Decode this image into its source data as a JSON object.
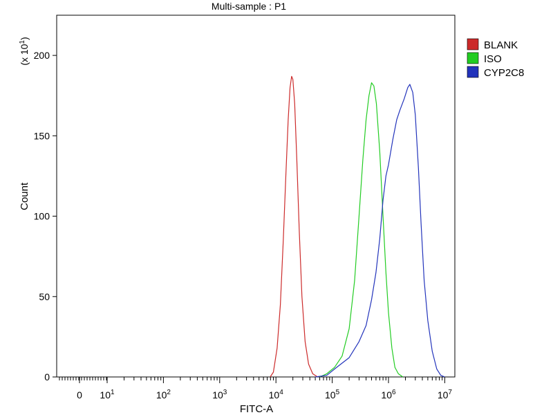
{
  "chart_data": {
    "type": "line",
    "title": "Multi-sample : P1",
    "xlabel": "FITC-A",
    "ylabel": "Count",
    "y_multiplier_label": "(x 10",
    "y_multiplier_exp": "1",
    "y_multiplier_close": ")",
    "x_scale": "log",
    "xlim": [
      -2,
      10000000
    ],
    "ylim": [
      0,
      22.5
    ],
    "y_ticks": [
      {
        "value": 0,
        "label": "0"
      },
      {
        "value": 5,
        "label": "50"
      },
      {
        "value": 10,
        "label": "100"
      },
      {
        "value": 15,
        "label": "150"
      },
      {
        "value": 20,
        "label": "200"
      }
    ],
    "x_ticks": [
      {
        "value": 0,
        "base": "0",
        "exp": ""
      },
      {
        "value": 10,
        "base": "10",
        "exp": "1"
      },
      {
        "value": 100,
        "base": "10",
        "exp": "2"
      },
      {
        "value": 1000,
        "base": "10",
        "exp": "3"
      },
      {
        "value": 10000,
        "base": "10",
        "exp": "4"
      },
      {
        "value": 100000,
        "base": "10",
        "exp": "5"
      },
      {
        "value": 1000000,
        "base": "10",
        "exp": "6"
      },
      {
        "value": 10000000,
        "base": "10",
        "exp": "7"
      }
    ],
    "grid": false,
    "legend_position": "right",
    "series": [
      {
        "name": "BLANK",
        "color": "#cc2a2a",
        "points": [
          [
            7900,
            0
          ],
          [
            9000,
            0.3
          ],
          [
            10500,
            1.8
          ],
          [
            12000,
            4.5
          ],
          [
            13500,
            8.5
          ],
          [
            15000,
            12.5
          ],
          [
            16500,
            16.0
          ],
          [
            17800,
            18.0
          ],
          [
            19000,
            18.7
          ],
          [
            20000,
            18.5
          ],
          [
            21500,
            17.0
          ],
          [
            23500,
            13.5
          ],
          [
            26000,
            9.0
          ],
          [
            29000,
            5.0
          ],
          [
            33000,
            2.2
          ],
          [
            38000,
            0.8
          ],
          [
            45000,
            0.2
          ],
          [
            55000,
            0
          ]
        ]
      },
      {
        "name": "ISO",
        "color": "#22cc22",
        "points": [
          [
            60000,
            0
          ],
          [
            80000,
            0.2
          ],
          [
            110000,
            0.6
          ],
          [
            150000,
            1.3
          ],
          [
            200000,
            3.0
          ],
          [
            250000,
            6.0
          ],
          [
            300000,
            10.0
          ],
          [
            350000,
            13.5
          ],
          [
            400000,
            16.0
          ],
          [
            450000,
            17.5
          ],
          [
            500000,
            18.3
          ],
          [
            550000,
            18.1
          ],
          [
            610000,
            17.0
          ],
          [
            700000,
            14.0
          ],
          [
            800000,
            10.0
          ],
          [
            900000,
            6.5
          ],
          [
            1000000,
            4.0
          ],
          [
            1150000,
            1.8
          ],
          [
            1300000,
            0.6
          ],
          [
            1500000,
            0.2
          ],
          [
            1800000,
            0
          ]
        ]
      },
      {
        "name": "CYP2C8",
        "color": "#2233bb",
        "points": [
          [
            50000,
            0
          ],
          [
            80000,
            0.1
          ],
          [
            120000,
            0.6
          ],
          [
            200000,
            1.2
          ],
          [
            300000,
            2.2
          ],
          [
            400000,
            3.2
          ],
          [
            500000,
            4.8
          ],
          [
            600000,
            6.5
          ],
          [
            700000,
            8.6
          ],
          [
            800000,
            11.0
          ],
          [
            900000,
            12.5
          ],
          [
            1000000,
            13.2
          ],
          [
            1200000,
            14.8
          ],
          [
            1400000,
            16.0
          ],
          [
            1600000,
            16.6
          ],
          [
            1900000,
            17.3
          ],
          [
            2200000,
            18.0
          ],
          [
            2400000,
            18.2
          ],
          [
            2700000,
            17.7
          ],
          [
            3000000,
            16.3
          ],
          [
            3400000,
            13.0
          ],
          [
            3800000,
            9.5
          ],
          [
            4300000,
            6.0
          ],
          [
            5000000,
            3.5
          ],
          [
            6000000,
            1.6
          ],
          [
            7200000,
            0.5
          ],
          [
            8500000,
            0.1
          ],
          [
            10000000,
            0
          ]
        ]
      }
    ]
  }
}
